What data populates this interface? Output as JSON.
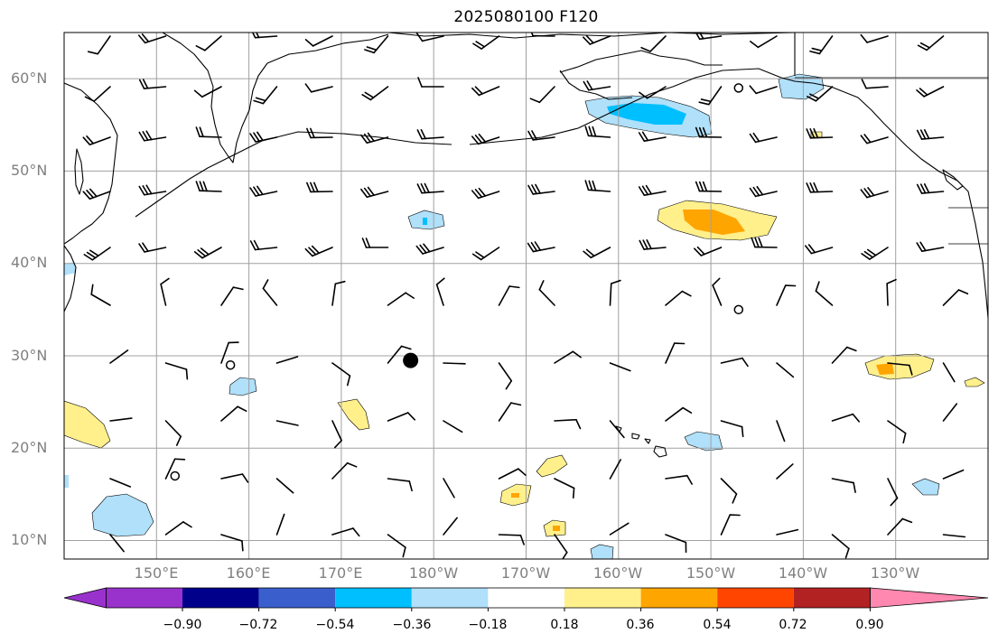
{
  "title": "2025080100 F120",
  "latitude_labels": [
    "60°N",
    "50°N",
    "40°N",
    "30°N",
    "20°N",
    "10°N"
  ],
  "longitude_labels": [
    "150°E",
    "160°E",
    "170°E",
    "180°W",
    "170°W",
    "160°W",
    "150°W",
    "140°W",
    "130°W"
  ],
  "colorbar": {
    "tick_labels": [
      "−0.90",
      "−0.72",
      "−0.54",
      "−0.36",
      "−0.18",
      "0.18",
      "0.36",
      "0.54",
      "0.72",
      "0.90"
    ],
    "colors": [
      "#9932cc",
      "#00008b",
      "#3a5fcd",
      "#00bfff",
      "#b0e0fa",
      "#ffffff",
      "#fff08c",
      "#ffa500",
      "#ff4500",
      "#b22222",
      "#ff88b0"
    ]
  },
  "map": {
    "extent_lon": [
      140,
      240
    ],
    "extent_lat": [
      8,
      65
    ],
    "gridline_color": "#a0a0a0",
    "coastline_color": "#000000",
    "markers": [
      {
        "type": "filled-circle",
        "lon": 177.5,
        "lat": 29.5
      },
      {
        "type": "open-circle",
        "lon": 158.0,
        "lat": 29.0
      },
      {
        "type": "open-circle",
        "lon": 152.0,
        "lat": 17.0
      },
      {
        "type": "open-circle",
        "lon": 213.0,
        "lat": 35.0
      },
      {
        "type": "open-circle",
        "lon": 213.0,
        "lat": 59.0
      }
    ]
  }
}
